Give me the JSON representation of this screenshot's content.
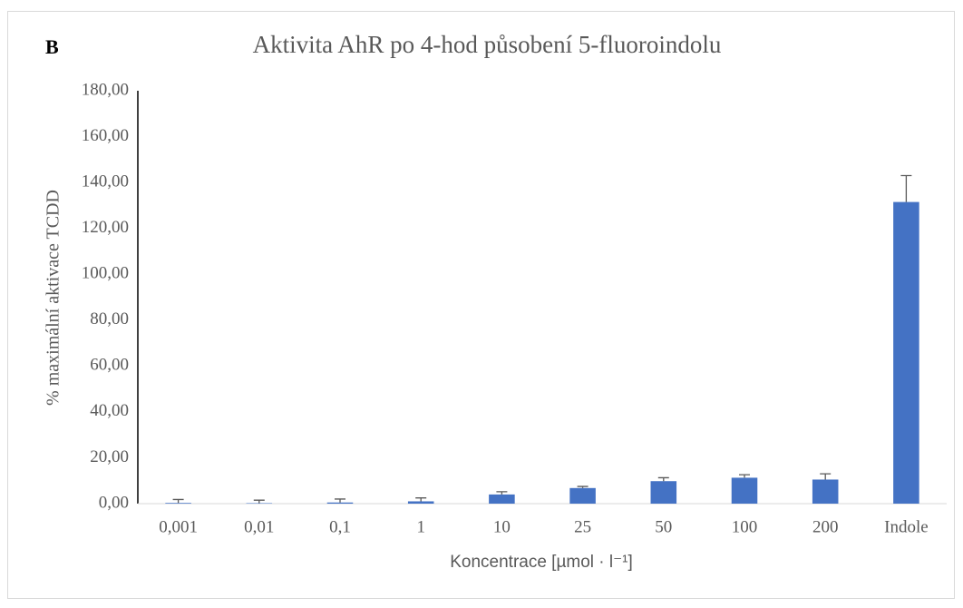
{
  "chart_data": {
    "type": "bar",
    "panel_label": "B",
    "title": "Aktivita AhR po 4-hod působení 5-fluoroindolu",
    "x_label": "Koncentrace [µmol · l⁻¹]",
    "y_label": "% maximální aktivace  TCDD",
    "categories": [
      "0,001",
      "0,01",
      "0,1",
      "1",
      "10",
      "25",
      "50",
      "100",
      "200",
      "Indole"
    ],
    "values": [
      0.3,
      0.2,
      0.5,
      1.0,
      4.0,
      6.8,
      9.8,
      11.3,
      10.5,
      131.5
    ],
    "errors": [
      1.5,
      1.3,
      1.5,
      1.5,
      1.2,
      0.7,
      1.5,
      1.3,
      2.5,
      11.5
    ],
    "color": "#4472c4",
    "error_color": "#595959",
    "ylim": [
      0,
      180
    ],
    "yticks": [
      {
        "value": 0,
        "label": "0,00"
      },
      {
        "value": 20,
        "label": "20,00"
      },
      {
        "value": 40,
        "label": "40,00"
      },
      {
        "value": 60,
        "label": "60,00"
      },
      {
        "value": 80,
        "label": "80,00"
      },
      {
        "value": 100,
        "label": "100,00"
      },
      {
        "value": 120,
        "label": "120,00"
      },
      {
        "value": 140,
        "label": "140,00"
      },
      {
        "value": 160,
        "label": "160,00"
      },
      {
        "value": 180,
        "label": "180,00"
      }
    ],
    "grid": false
  }
}
